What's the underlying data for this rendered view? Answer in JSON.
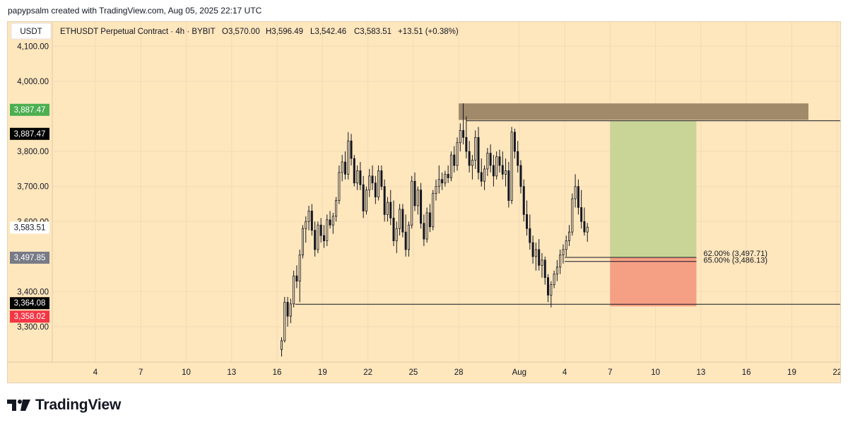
{
  "attribution": "papypsalm created with TradingView.com, Aug 05, 2025 22:17 UTC",
  "footer": {
    "brand": "TradingView",
    "logo_icon": "tradingview-logo-icon"
  },
  "currency_badge": "USDT",
  "header": {
    "symbol": "ETHUSDT Perpetual Contract · 4h · BYBIT",
    "open": "O3,570.00",
    "high": "H3,596.49",
    "low": "L3,542.46",
    "close": "C3,583.51",
    "change": "+13.51 (+0.38%)"
  },
  "chart_data": {
    "type": "candlestick",
    "symbol": "ETHUSDT",
    "timeframe": "4h",
    "exchange": "BYBIT",
    "ylim": [
      3200,
      4130
    ],
    "x_range_days": [
      1.2,
      53.2
    ],
    "y_ticks": [
      {
        "value": 4100,
        "label": "4,100.00"
      },
      {
        "value": 4000,
        "label": "4,000.00"
      },
      {
        "value": 3800,
        "label": "3,800.00"
      },
      {
        "value": 3700,
        "label": "3,700.00"
      },
      {
        "value": 3600,
        "label": "3,600.00"
      },
      {
        "value": 3400,
        "label": "3,400.00"
      },
      {
        "value": 3300,
        "label": "3,300.00"
      }
    ],
    "x_ticks": [
      {
        "day": 4,
        "label": "4"
      },
      {
        "day": 7,
        "label": "7"
      },
      {
        "day": 10,
        "label": "10"
      },
      {
        "day": 13,
        "label": "13"
      },
      {
        "day": 16,
        "label": "16"
      },
      {
        "day": 19,
        "label": "19"
      },
      {
        "day": 22,
        "label": "22"
      },
      {
        "day": 25,
        "label": "25"
      },
      {
        "day": 28,
        "label": "28"
      },
      {
        "day": 32,
        "label": "Aug"
      },
      {
        "day": 35,
        "label": "4"
      },
      {
        "day": 38,
        "label": "7"
      },
      {
        "day": 41,
        "label": "10"
      },
      {
        "day": 44,
        "label": "13"
      },
      {
        "day": 47,
        "label": "16"
      },
      {
        "day": 50,
        "label": "19"
      },
      {
        "day": 53,
        "label": "22"
      }
    ],
    "price_labels": [
      {
        "value": 3887.47,
        "label": "3,887.47",
        "bg": "#4caf50",
        "fg": "#ffffff"
      },
      {
        "value": 3887.47,
        "label": "3,887.47",
        "bg": "#000000",
        "fg": "#ffffff",
        "offset_rows": 1
      },
      {
        "value": 3583.51,
        "label": "3,583.51",
        "bg": "#ffffff",
        "fg": "#131722"
      },
      {
        "value": 3497.85,
        "label": "3,497.85",
        "bg": "#787b86",
        "fg": "#ffffff"
      },
      {
        "value": 3364.08,
        "label": "3,364.08",
        "bg": "#000000",
        "fg": "#ffffff"
      },
      {
        "value": 3358.02,
        "label": "3,358.02",
        "bg": "#f23645",
        "fg": "#ffffff"
      }
    ],
    "supply_zone": {
      "day_from": 28.0,
      "day_to": 51.1,
      "price_from": 3890,
      "price_to": 3937,
      "color": "#a08a6a"
    },
    "target_zone": {
      "day_from": 38.0,
      "day_to": 43.7,
      "price_from": 3497.85,
      "price_to": 3887.47,
      "color": "#c8d597"
    },
    "stop_zone": {
      "day_from": 38.0,
      "day_to": 43.7,
      "price_from": 3358.02,
      "price_to": 3497.85,
      "color": "#f59f84"
    },
    "horizontal_lines": [
      {
        "price": 3887.47,
        "day_from": 28.5,
        "day_to": 53.5
      },
      {
        "price": 3364.08,
        "day_from": 17.2,
        "day_to": 53.5
      },
      {
        "price": 3497.71,
        "day_from": 35.0,
        "day_to": 43.7
      },
      {
        "price": 3486.13,
        "day_from": 35.0,
        "day_to": 43.7
      }
    ],
    "fib_labels": [
      {
        "price": 3497.71,
        "label": "62.00% (3,497.71)"
      },
      {
        "price": 3486.13,
        "label": "65.00% (3,486.13)"
      }
    ],
    "candle_colors": {
      "up": "#131722",
      "down": "#131722"
    },
    "candles": [
      {
        "d": 16.3,
        "o": 3235,
        "h": 3270,
        "l": 3215,
        "c": 3260
      },
      {
        "d": 16.5,
        "o": 3260,
        "h": 3385,
        "l": 3255,
        "c": 3370
      },
      {
        "d": 16.7,
        "o": 3370,
        "h": 3385,
        "l": 3300,
        "c": 3330
      },
      {
        "d": 16.9,
        "o": 3330,
        "h": 3380,
        "l": 3310,
        "c": 3365
      },
      {
        "d": 17.1,
        "o": 3365,
        "h": 3460,
        "l": 3355,
        "c": 3445
      },
      {
        "d": 17.3,
        "o": 3445,
        "h": 3475,
        "l": 3410,
        "c": 3430
      },
      {
        "d": 17.5,
        "o": 3430,
        "h": 3520,
        "l": 3370,
        "c": 3505
      },
      {
        "d": 17.7,
        "o": 3505,
        "h": 3590,
        "l": 3495,
        "c": 3580
      },
      {
        "d": 17.9,
        "o": 3580,
        "h": 3615,
        "l": 3540,
        "c": 3600
      },
      {
        "d": 18.1,
        "o": 3600,
        "h": 3645,
        "l": 3575,
        "c": 3630
      },
      {
        "d": 18.3,
        "o": 3630,
        "h": 3650,
        "l": 3560,
        "c": 3575
      },
      {
        "d": 18.5,
        "o": 3575,
        "h": 3600,
        "l": 3500,
        "c": 3520
      },
      {
        "d": 18.7,
        "o": 3520,
        "h": 3600,
        "l": 3510,
        "c": 3590
      },
      {
        "d": 18.9,
        "o": 3590,
        "h": 3610,
        "l": 3540,
        "c": 3560
      },
      {
        "d": 19.1,
        "o": 3560,
        "h": 3590,
        "l": 3525,
        "c": 3545
      },
      {
        "d": 19.3,
        "o": 3545,
        "h": 3620,
        "l": 3530,
        "c": 3605
      },
      {
        "d": 19.5,
        "o": 3605,
        "h": 3630,
        "l": 3580,
        "c": 3590
      },
      {
        "d": 19.7,
        "o": 3590,
        "h": 3625,
        "l": 3565,
        "c": 3615
      },
      {
        "d": 19.9,
        "o": 3615,
        "h": 3670,
        "l": 3600,
        "c": 3660
      },
      {
        "d": 20.1,
        "o": 3660,
        "h": 3760,
        "l": 3650,
        "c": 3740
      },
      {
        "d": 20.3,
        "o": 3740,
        "h": 3790,
        "l": 3715,
        "c": 3770
      },
      {
        "d": 20.5,
        "o": 3770,
        "h": 3800,
        "l": 3720,
        "c": 3735
      },
      {
        "d": 20.7,
        "o": 3735,
        "h": 3855,
        "l": 3720,
        "c": 3830
      },
      {
        "d": 20.9,
        "o": 3830,
        "h": 3850,
        "l": 3760,
        "c": 3780
      },
      {
        "d": 21.1,
        "o": 3780,
        "h": 3790,
        "l": 3700,
        "c": 3710
      },
      {
        "d": 21.3,
        "o": 3710,
        "h": 3760,
        "l": 3690,
        "c": 3745
      },
      {
        "d": 21.5,
        "o": 3745,
        "h": 3770,
        "l": 3690,
        "c": 3705
      },
      {
        "d": 21.7,
        "o": 3705,
        "h": 3730,
        "l": 3610,
        "c": 3630
      },
      {
        "d": 21.9,
        "o": 3630,
        "h": 3700,
        "l": 3620,
        "c": 3690
      },
      {
        "d": 22.1,
        "o": 3690,
        "h": 3750,
        "l": 3670,
        "c": 3730
      },
      {
        "d": 22.3,
        "o": 3730,
        "h": 3760,
        "l": 3690,
        "c": 3710
      },
      {
        "d": 22.5,
        "o": 3710,
        "h": 3730,
        "l": 3650,
        "c": 3670
      },
      {
        "d": 22.7,
        "o": 3670,
        "h": 3760,
        "l": 3660,
        "c": 3745
      },
      {
        "d": 22.9,
        "o": 3745,
        "h": 3760,
        "l": 3690,
        "c": 3700
      },
      {
        "d": 23.1,
        "o": 3700,
        "h": 3720,
        "l": 3600,
        "c": 3620
      },
      {
        "d": 23.3,
        "o": 3620,
        "h": 3670,
        "l": 3600,
        "c": 3655
      },
      {
        "d": 23.5,
        "o": 3655,
        "h": 3690,
        "l": 3590,
        "c": 3610
      },
      {
        "d": 23.7,
        "o": 3610,
        "h": 3660,
        "l": 3530,
        "c": 3545
      },
      {
        "d": 23.9,
        "o": 3545,
        "h": 3600,
        "l": 3510,
        "c": 3580
      },
      {
        "d": 24.1,
        "o": 3580,
        "h": 3650,
        "l": 3560,
        "c": 3635
      },
      {
        "d": 24.3,
        "o": 3635,
        "h": 3650,
        "l": 3555,
        "c": 3570
      },
      {
        "d": 24.5,
        "o": 3570,
        "h": 3620,
        "l": 3500,
        "c": 3520
      },
      {
        "d": 24.7,
        "o": 3520,
        "h": 3600,
        "l": 3500,
        "c": 3590
      },
      {
        "d": 24.9,
        "o": 3590,
        "h": 3730,
        "l": 3580,
        "c": 3715
      },
      {
        "d": 25.1,
        "o": 3715,
        "h": 3740,
        "l": 3630,
        "c": 3645
      },
      {
        "d": 25.3,
        "o": 3645,
        "h": 3700,
        "l": 3620,
        "c": 3690
      },
      {
        "d": 25.5,
        "o": 3690,
        "h": 3710,
        "l": 3580,
        "c": 3595
      },
      {
        "d": 25.7,
        "o": 3595,
        "h": 3620,
        "l": 3530,
        "c": 3550
      },
      {
        "d": 25.9,
        "o": 3550,
        "h": 3640,
        "l": 3540,
        "c": 3625
      },
      {
        "d": 26.1,
        "o": 3625,
        "h": 3650,
        "l": 3570,
        "c": 3585
      },
      {
        "d": 26.3,
        "o": 3585,
        "h": 3690,
        "l": 3575,
        "c": 3680
      },
      {
        "d": 26.5,
        "o": 3680,
        "h": 3720,
        "l": 3660,
        "c": 3700
      },
      {
        "d": 26.7,
        "o": 3700,
        "h": 3760,
        "l": 3680,
        "c": 3720
      },
      {
        "d": 26.9,
        "o": 3720,
        "h": 3740,
        "l": 3690,
        "c": 3710
      },
      {
        "d": 27.1,
        "o": 3710,
        "h": 3745,
        "l": 3700,
        "c": 3735
      },
      {
        "d": 27.3,
        "o": 3735,
        "h": 3760,
        "l": 3710,
        "c": 3725
      },
      {
        "d": 27.5,
        "o": 3725,
        "h": 3800,
        "l": 3715,
        "c": 3790
      },
      {
        "d": 27.7,
        "o": 3790,
        "h": 3815,
        "l": 3740,
        "c": 3760
      },
      {
        "d": 27.9,
        "o": 3760,
        "h": 3840,
        "l": 3745,
        "c": 3825
      },
      {
        "d": 28.1,
        "o": 3825,
        "h": 3880,
        "l": 3800,
        "c": 3860
      },
      {
        "d": 28.3,
        "o": 3860,
        "h": 3937,
        "l": 3820,
        "c": 3840
      },
      {
        "d": 28.5,
        "o": 3840,
        "h": 3900,
        "l": 3780,
        "c": 3800
      },
      {
        "d": 28.7,
        "o": 3800,
        "h": 3830,
        "l": 3740,
        "c": 3760
      },
      {
        "d": 28.9,
        "o": 3760,
        "h": 3790,
        "l": 3720,
        "c": 3775
      },
      {
        "d": 29.1,
        "o": 3775,
        "h": 3860,
        "l": 3750,
        "c": 3840
      },
      {
        "d": 29.3,
        "o": 3840,
        "h": 3870,
        "l": 3720,
        "c": 3740
      },
      {
        "d": 29.5,
        "o": 3740,
        "h": 3780,
        "l": 3700,
        "c": 3715
      },
      {
        "d": 29.7,
        "o": 3715,
        "h": 3760,
        "l": 3690,
        "c": 3750
      },
      {
        "d": 29.9,
        "o": 3750,
        "h": 3810,
        "l": 3730,
        "c": 3795
      },
      {
        "d": 30.1,
        "o": 3795,
        "h": 3820,
        "l": 3740,
        "c": 3760
      },
      {
        "d": 30.3,
        "o": 3760,
        "h": 3790,
        "l": 3700,
        "c": 3730
      },
      {
        "d": 30.5,
        "o": 3730,
        "h": 3800,
        "l": 3720,
        "c": 3785
      },
      {
        "d": 30.7,
        "o": 3785,
        "h": 3805,
        "l": 3740,
        "c": 3760
      },
      {
        "d": 30.9,
        "o": 3760,
        "h": 3800,
        "l": 3720,
        "c": 3735
      },
      {
        "d": 31.1,
        "o": 3735,
        "h": 3780,
        "l": 3700,
        "c": 3745
      },
      {
        "d": 31.3,
        "o": 3745,
        "h": 3770,
        "l": 3640,
        "c": 3660
      },
      {
        "d": 31.5,
        "o": 3660,
        "h": 3870,
        "l": 3650,
        "c": 3855
      },
      {
        "d": 31.7,
        "o": 3855,
        "h": 3865,
        "l": 3780,
        "c": 3800
      },
      {
        "d": 31.9,
        "o": 3800,
        "h": 3830,
        "l": 3740,
        "c": 3760
      },
      {
        "d": 32.1,
        "o": 3760,
        "h": 3775,
        "l": 3680,
        "c": 3700
      },
      {
        "d": 32.3,
        "o": 3700,
        "h": 3720,
        "l": 3600,
        "c": 3620
      },
      {
        "d": 32.5,
        "o": 3620,
        "h": 3660,
        "l": 3560,
        "c": 3580
      },
      {
        "d": 32.7,
        "o": 3580,
        "h": 3620,
        "l": 3520,
        "c": 3540
      },
      {
        "d": 32.9,
        "o": 3540,
        "h": 3560,
        "l": 3480,
        "c": 3500
      },
      {
        "d": 33.1,
        "o": 3500,
        "h": 3540,
        "l": 3460,
        "c": 3520
      },
      {
        "d": 33.3,
        "o": 3520,
        "h": 3550,
        "l": 3460,
        "c": 3475
      },
      {
        "d": 33.5,
        "o": 3475,
        "h": 3510,
        "l": 3440,
        "c": 3490
      },
      {
        "d": 33.7,
        "o": 3490,
        "h": 3500,
        "l": 3420,
        "c": 3440
      },
      {
        "d": 33.9,
        "o": 3440,
        "h": 3450,
        "l": 3370,
        "c": 3390
      },
      {
        "d": 34.1,
        "o": 3390,
        "h": 3430,
        "l": 3355,
        "c": 3420
      },
      {
        "d": 34.3,
        "o": 3420,
        "h": 3460,
        "l": 3410,
        "c": 3450
      },
      {
        "d": 34.5,
        "o": 3450,
        "h": 3490,
        "l": 3430,
        "c": 3470
      },
      {
        "d": 34.7,
        "o": 3470,
        "h": 3520,
        "l": 3450,
        "c": 3505
      },
      {
        "d": 34.9,
        "o": 3505,
        "h": 3535,
        "l": 3480,
        "c": 3520
      },
      {
        "d": 35.1,
        "o": 3520,
        "h": 3560,
        "l": 3500,
        "c": 3545
      },
      {
        "d": 35.3,
        "o": 3545,
        "h": 3590,
        "l": 3530,
        "c": 3570
      },
      {
        "d": 35.5,
        "o": 3570,
        "h": 3680,
        "l": 3560,
        "c": 3665
      },
      {
        "d": 35.7,
        "o": 3665,
        "h": 3735,
        "l": 3640,
        "c": 3700
      },
      {
        "d": 35.9,
        "o": 3700,
        "h": 3720,
        "l": 3620,
        "c": 3640
      },
      {
        "d": 36.1,
        "o": 3640,
        "h": 3690,
        "l": 3580,
        "c": 3600
      },
      {
        "d": 36.3,
        "o": 3600,
        "h": 3640,
        "l": 3560,
        "c": 3570
      },
      {
        "d": 36.5,
        "o": 3570,
        "h": 3596,
        "l": 3542,
        "c": 3584
      }
    ]
  }
}
